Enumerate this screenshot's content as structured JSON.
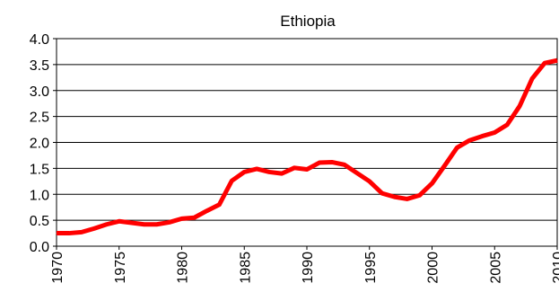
{
  "chart_data": {
    "type": "line",
    "title": "Ethiopia",
    "xlabel": "",
    "ylabel": "",
    "xlim": [
      1970,
      2010
    ],
    "ylim": [
      0,
      4.0
    ],
    "grid": true,
    "x_ticks": [
      "1970",
      "1975",
      "1980",
      "1985",
      "1990",
      "1995",
      "2000",
      "2005",
      "2010"
    ],
    "y_ticks": [
      "0.0",
      "0.5",
      "1.0",
      "1.5",
      "2.0",
      "2.5",
      "3.0",
      "3.5",
      "4.0"
    ],
    "series": [
      {
        "color": "#ff0000",
        "x": [
          1970,
          1971,
          1972,
          1973,
          1974,
          1975,
          1976,
          1977,
          1978,
          1979,
          1980,
          1981,
          1982,
          1983,
          1984,
          1985,
          1986,
          1987,
          1988,
          1989,
          1990,
          1991,
          1992,
          1993,
          1994,
          1995,
          1996,
          1997,
          1998,
          1999,
          2000,
          2001,
          2002,
          2003,
          2004,
          2005,
          2006,
          2007,
          2008,
          2009,
          2010
        ],
        "y": [
          0.25,
          0.25,
          0.27,
          0.34,
          0.42,
          0.48,
          0.45,
          0.42,
          0.42,
          0.46,
          0.53,
          0.55,
          0.68,
          0.8,
          1.26,
          1.43,
          1.49,
          1.43,
          1.4,
          1.51,
          1.48,
          1.61,
          1.62,
          1.57,
          1.41,
          1.25,
          1.02,
          0.95,
          0.91,
          0.98,
          1.21,
          1.55,
          1.9,
          2.04,
          2.12,
          2.19,
          2.34,
          2.7,
          3.23,
          3.53,
          3.58
        ]
      }
    ]
  }
}
